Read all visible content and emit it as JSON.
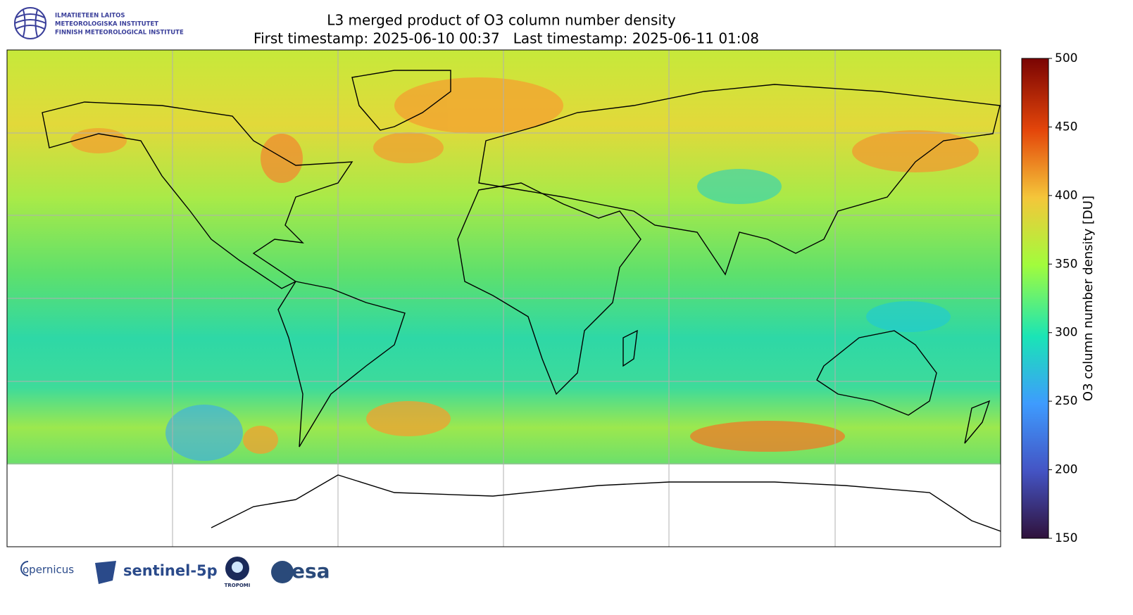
{
  "header": {
    "institute": [
      "ILMATIETEEN LAITOS",
      "METEOROLOGISKA INSTITUTET",
      "FINNISH METEOROLOGICAL INSTITUTE"
    ],
    "title": "L3 merged product of O3 column number density",
    "subtitle": "First timestamp: 2025-06-10 00:37   Last timestamp: 2025-06-11 01:08"
  },
  "colorbar": {
    "label": "O3 column number density [DU]",
    "lim": [
      150,
      500
    ],
    "ticks": [
      150,
      200,
      250,
      300,
      350,
      400,
      450,
      500
    ]
  },
  "footer": {
    "logos": [
      "opernicus",
      "sentinel-5p",
      "TROPOMI",
      "esa"
    ]
  }
}
